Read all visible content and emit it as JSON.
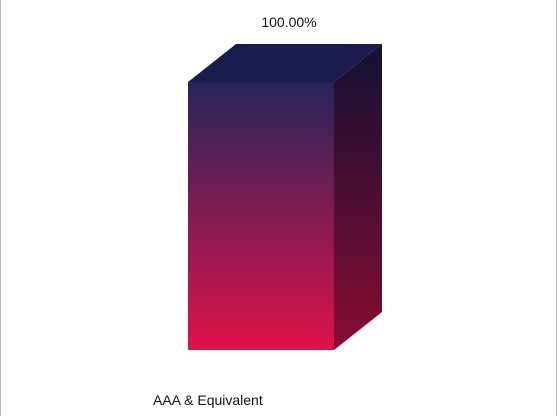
{
  "chart_data": {
    "type": "bar",
    "categories": [
      "AAA & Equivalent"
    ],
    "values": [
      100.0
    ],
    "data_labels": [
      "100.00%"
    ],
    "ylim": [
      0,
      100
    ],
    "grid": false,
    "legend": "none",
    "colors": {
      "top_face": "#1b1b4d",
      "front_top": "#25255a",
      "front_bottom": "#e0114a",
      "side_top": "#111133",
      "side_bottom": "#8a0b32"
    }
  }
}
